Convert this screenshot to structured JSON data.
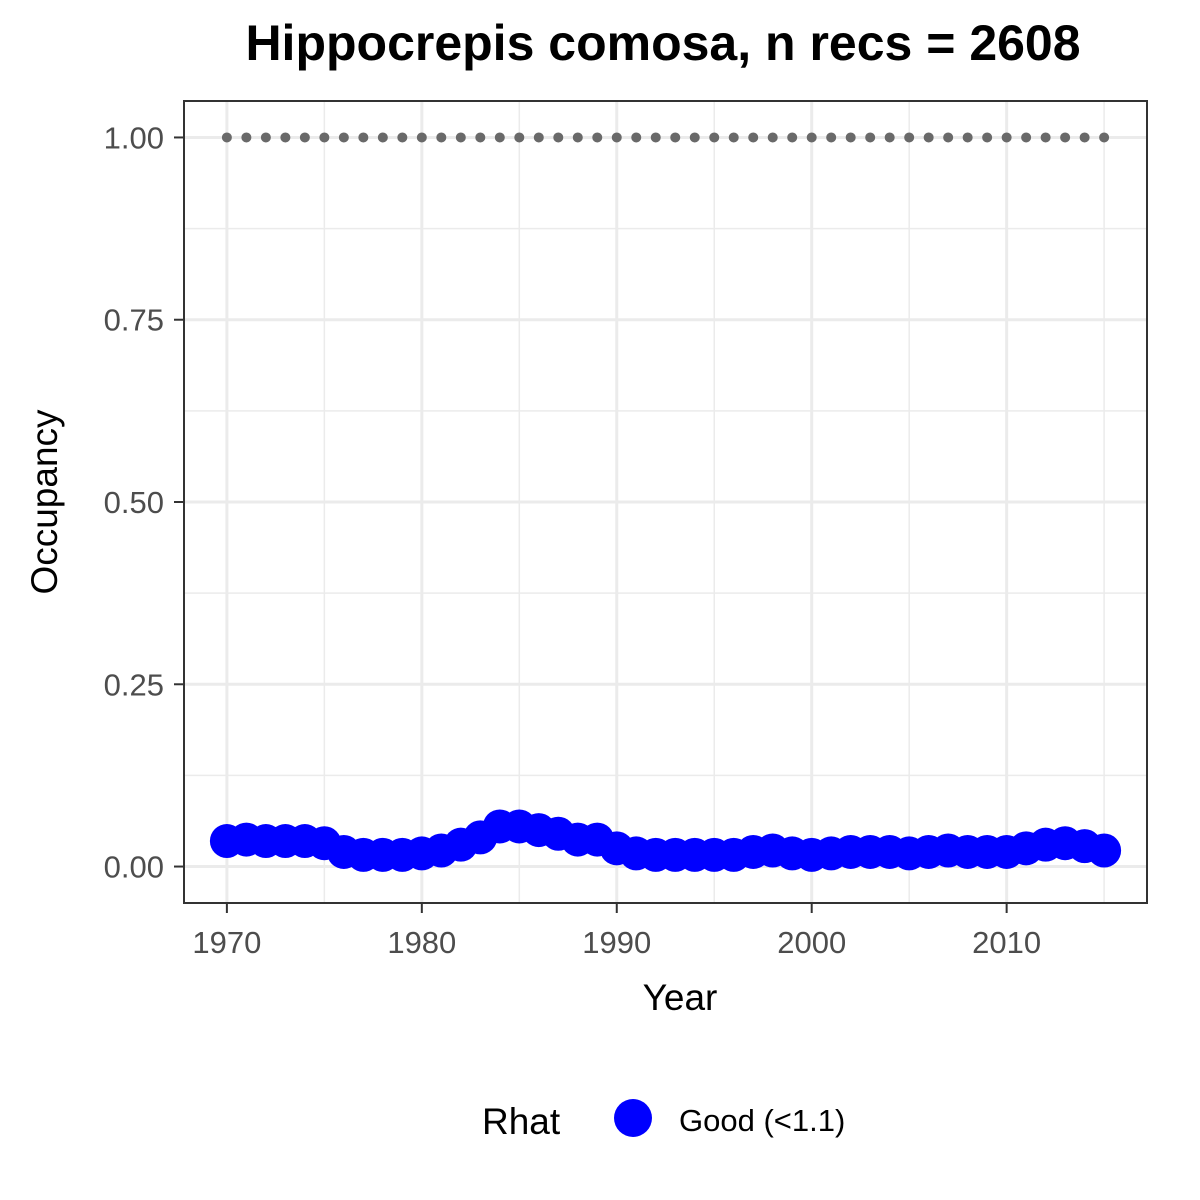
{
  "chart_data": {
    "type": "scatter",
    "title": "Hippocrepis comosa, n recs = 2608",
    "xlabel": "Year",
    "ylabel": "Occupancy",
    "xlim": [
      1967.8,
      2017.2
    ],
    "ylim": [
      -0.05,
      1.05
    ],
    "x_ticks": [
      1970,
      1980,
      1990,
      2000,
      2010
    ],
    "x_tick_labels": [
      "1970",
      "1980",
      "1990",
      "2000",
      "2010"
    ],
    "y_ticks": [
      0,
      0.25,
      0.5,
      0.75,
      1.0
    ],
    "y_tick_labels": [
      "0.00",
      "0.25",
      "0.50",
      "0.75",
      "1.00"
    ],
    "grid": true,
    "legend_position": "bottom",
    "legend_title": "Rhat",
    "series": [
      {
        "name": "Good (<1.1)",
        "color": "#0000ff",
        "marker": "large-circle",
        "x": [
          1970,
          1971,
          1972,
          1973,
          1974,
          1975,
          1976,
          1977,
          1978,
          1979,
          1980,
          1981,
          1982,
          1983,
          1984,
          1985,
          1986,
          1987,
          1988,
          1989,
          1990,
          1991,
          1992,
          1993,
          1994,
          1995,
          1996,
          1997,
          1998,
          1999,
          2000,
          2001,
          2002,
          2003,
          2004,
          2005,
          2006,
          2007,
          2008,
          2009,
          2010,
          2011,
          2012,
          2013,
          2014,
          2015
        ],
        "values": [
          0.035,
          0.037,
          0.035,
          0.035,
          0.035,
          0.032,
          0.02,
          0.016,
          0.016,
          0.016,
          0.018,
          0.022,
          0.03,
          0.04,
          0.055,
          0.055,
          0.05,
          0.045,
          0.037,
          0.037,
          0.025,
          0.018,
          0.016,
          0.016,
          0.016,
          0.016,
          0.016,
          0.02,
          0.022,
          0.018,
          0.016,
          0.018,
          0.02,
          0.02,
          0.02,
          0.018,
          0.02,
          0.022,
          0.02,
          0.02,
          0.02,
          0.025,
          0.03,
          0.032,
          0.028,
          0.022
        ]
      },
      {
        "name": "",
        "color": "#696969",
        "marker": "small-dot",
        "x": [
          1970,
          1971,
          1972,
          1973,
          1974,
          1975,
          1976,
          1977,
          1978,
          1979,
          1980,
          1981,
          1982,
          1983,
          1984,
          1985,
          1986,
          1987,
          1988,
          1989,
          1990,
          1991,
          1992,
          1993,
          1994,
          1995,
          1996,
          1997,
          1998,
          1999,
          2000,
          2001,
          2002,
          2003,
          2004,
          2005,
          2006,
          2007,
          2008,
          2009,
          2010,
          2011,
          2012,
          2013,
          2014,
          2015
        ],
        "values": [
          1,
          1,
          1,
          1,
          1,
          1,
          1,
          1,
          1,
          1,
          1,
          1,
          1,
          1,
          1,
          1,
          1,
          1,
          1,
          1,
          1,
          1,
          1,
          1,
          1,
          1,
          1,
          1,
          1,
          1,
          1,
          1,
          1,
          1,
          1,
          1,
          1,
          1,
          1,
          1,
          1,
          1,
          1,
          1,
          1,
          1
        ]
      }
    ]
  }
}
